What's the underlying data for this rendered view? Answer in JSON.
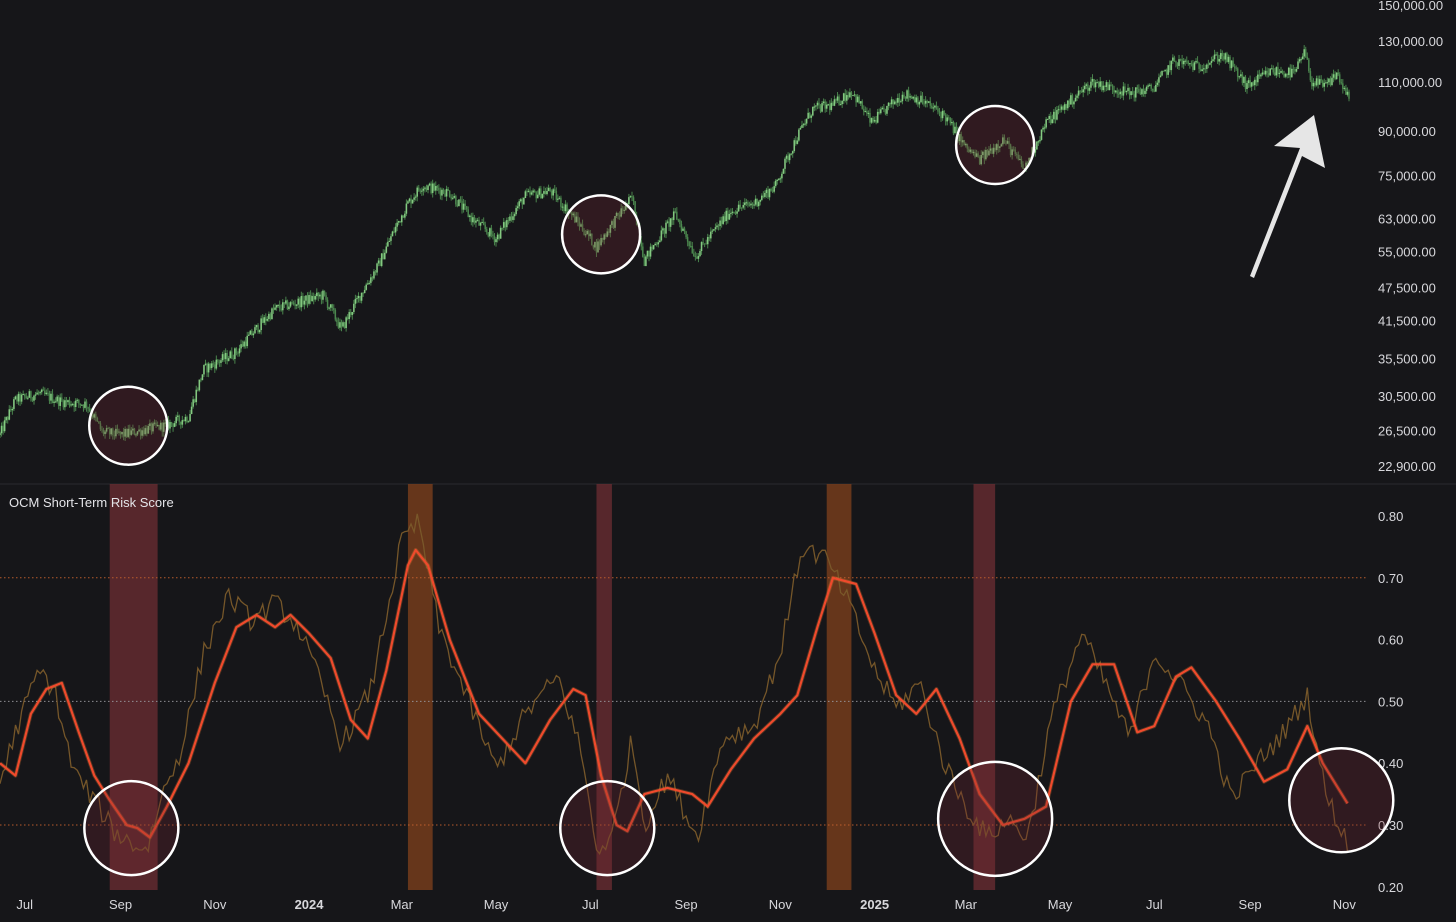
{
  "colors": {
    "background": "#161619",
    "candle": "#4f8f52",
    "candle_light": "#8fd88c",
    "risk_fast": "#7a5a2a",
    "risk_slow": "#ef4a2c",
    "risk_slow_glow": "#ff8a3c",
    "band_red": "#6e2e33",
    "band_orange": "#7a3f1c",
    "line_orange_dotted": "#c8622e",
    "line_white_dotted": "#9a9aa0",
    "axis_text": "#d8d8dc",
    "circle": "#ffffff",
    "arrow": "#e6e6e6"
  },
  "chart_data": [
    {
      "type": "candlestick",
      "name": "price",
      "scale": "log",
      "y_ticks": [
        22900,
        26500,
        30500,
        35500,
        41500,
        47500,
        55000,
        63000,
        75000,
        90000,
        110000,
        130000,
        150000
      ],
      "y_tick_labels": [
        "22,900.00",
        "26,500.00",
        "30,500.00",
        "35,500.00",
        "41,500.00",
        "47,500.00",
        "55,000.00",
        "63,000.00",
        "75,000.00",
        "90,000.00",
        "110,000.00",
        "130,000.00",
        "150,000.00"
      ],
      "ylim": [
        21500,
        150000
      ],
      "x_start": "2023-06-15",
      "x_end": "2025-11-15",
      "price_path": [
        [
          "2023-06-15",
          26000
        ],
        [
          "2023-06-25",
          30000
        ],
        [
          "2023-07-10",
          30800
        ],
        [
          "2023-07-25",
          29800
        ],
        [
          "2023-08-10",
          29500
        ],
        [
          "2023-08-20",
          26300
        ],
        [
          "2023-09-01",
          26000
        ],
        [
          "2023-09-15",
          26500
        ],
        [
          "2023-09-30",
          27000
        ],
        [
          "2023-10-15",
          28000
        ],
        [
          "2023-10-25",
          34000
        ],
        [
          "2023-11-15",
          36500
        ],
        [
          "2023-12-10",
          43500
        ],
        [
          "2024-01-10",
          46000
        ],
        [
          "2024-01-22",
          40000
        ],
        [
          "2024-02-15",
          52000
        ],
        [
          "2024-03-05",
          67000
        ],
        [
          "2024-03-14",
          72000
        ],
        [
          "2024-04-01",
          70000
        ],
        [
          "2024-04-15",
          63000
        ],
        [
          "2024-05-01",
          58000
        ],
        [
          "2024-05-20",
          69000
        ],
        [
          "2024-06-05",
          70500
        ],
        [
          "2024-06-25",
          61000
        ],
        [
          "2024-07-05",
          56000
        ],
        [
          "2024-07-28",
          68500
        ],
        [
          "2024-08-05",
          53000
        ],
        [
          "2024-08-25",
          64000
        ],
        [
          "2024-09-07",
          54000
        ],
        [
          "2024-09-30",
          65000
        ],
        [
          "2024-10-15",
          67000
        ],
        [
          "2024-10-29",
          72000
        ],
        [
          "2024-11-12",
          88000
        ],
        [
          "2024-11-22",
          98500
        ],
        [
          "2024-12-05",
          100000
        ],
        [
          "2024-12-17",
          106000
        ],
        [
          "2024-12-30",
          93000
        ],
        [
          "2025-01-20",
          105000
        ],
        [
          "2025-01-31",
          102000
        ],
        [
          "2025-02-15",
          96000
        ],
        [
          "2025-03-01",
          84000
        ],
        [
          "2025-03-10",
          80000
        ],
        [
          "2025-03-25",
          87000
        ],
        [
          "2025-04-08",
          77000
        ],
        [
          "2025-04-22",
          93000
        ],
        [
          "2025-05-10",
          103000
        ],
        [
          "2025-05-22",
          110000
        ],
        [
          "2025-06-15",
          105000
        ],
        [
          "2025-06-30",
          107000
        ],
        [
          "2025-07-14",
          120000
        ],
        [
          "2025-07-30",
          117000
        ],
        [
          "2025-08-14",
          123000
        ],
        [
          "2025-08-30",
          108000
        ],
        [
          "2025-09-15",
          115000
        ],
        [
          "2025-09-30",
          114000
        ],
        [
          "2025-10-06",
          124000
        ],
        [
          "2025-10-11",
          110000
        ],
        [
          "2025-10-20",
          108000
        ],
        [
          "2025-10-27",
          114000
        ],
        [
          "2025-11-04",
          102000
        ]
      ]
    },
    {
      "type": "line",
      "title": "OCM Short-Term Risk Score",
      "y_ticks": [
        0.2,
        0.3,
        0.4,
        0.5,
        0.6,
        0.7,
        0.8
      ],
      "y_tick_labels": [
        "0.20",
        "0.30",
        "0.40",
        "0.50",
        "0.60",
        "0.70",
        "0.80"
      ],
      "ylim": [
        0.2,
        0.84
      ],
      "reference_lines": [
        {
          "value": 0.7,
          "style": "orange-dotted"
        },
        {
          "value": 0.5,
          "style": "white-dotted"
        },
        {
          "value": 0.3,
          "style": "orange-dotted"
        }
      ],
      "series": [
        {
          "style": "slow",
          "points": [
            [
              "2023-06-15",
              0.4
            ],
            [
              "2023-06-25",
              0.38
            ],
            [
              "2023-07-05",
              0.48
            ],
            [
              "2023-07-15",
              0.52
            ],
            [
              "2023-07-25",
              0.53
            ],
            [
              "2023-08-05",
              0.45
            ],
            [
              "2023-08-15",
              0.38
            ],
            [
              "2023-08-25",
              0.34
            ],
            [
              "2023-09-05",
              0.3
            ],
            [
              "2023-09-12",
              0.295
            ],
            [
              "2023-09-20",
              0.28
            ],
            [
              "2023-10-01",
              0.33
            ],
            [
              "2023-10-15",
              0.4
            ],
            [
              "2023-11-01",
              0.53
            ],
            [
              "2023-11-15",
              0.62
            ],
            [
              "2023-11-28",
              0.64
            ],
            [
              "2023-12-10",
              0.62
            ],
            [
              "2023-12-20",
              0.64
            ],
            [
              "2024-01-01",
              0.61
            ],
            [
              "2024-01-15",
              0.57
            ],
            [
              "2024-01-28",
              0.47
            ],
            [
              "2024-02-08",
              0.44
            ],
            [
              "2024-02-20",
              0.55
            ],
            [
              "2024-03-05",
              0.72
            ],
            [
              "2024-03-10",
              0.745
            ],
            [
              "2024-03-18",
              0.72
            ],
            [
              "2024-04-01",
              0.6
            ],
            [
              "2024-04-20",
              0.48
            ],
            [
              "2024-05-05",
              0.44
            ],
            [
              "2024-05-20",
              0.4
            ],
            [
              "2024-06-05",
              0.47
            ],
            [
              "2024-06-20",
              0.52
            ],
            [
              "2024-06-28",
              0.51
            ],
            [
              "2024-07-08",
              0.38
            ],
            [
              "2024-07-18",
              0.3
            ],
            [
              "2024-07-25",
              0.29
            ],
            [
              "2024-08-05",
              0.35
            ],
            [
              "2024-08-20",
              0.36
            ],
            [
              "2024-09-05",
              0.35
            ],
            [
              "2024-09-15",
              0.33
            ],
            [
              "2024-09-30",
              0.39
            ],
            [
              "2024-10-15",
              0.44
            ],
            [
              "2024-11-01",
              0.48
            ],
            [
              "2024-11-12",
              0.51
            ],
            [
              "2024-11-25",
              0.62
            ],
            [
              "2024-12-05",
              0.7
            ],
            [
              "2024-12-20",
              0.69
            ],
            [
              "2025-01-01",
              0.61
            ],
            [
              "2025-01-15",
              0.51
            ],
            [
              "2025-01-28",
              0.48
            ],
            [
              "2025-02-10",
              0.52
            ],
            [
              "2025-02-25",
              0.44
            ],
            [
              "2025-03-10",
              0.35
            ],
            [
              "2025-03-25",
              0.3
            ],
            [
              "2025-04-08",
              0.31
            ],
            [
              "2025-04-22",
              0.33
            ],
            [
              "2025-05-08",
              0.5
            ],
            [
              "2025-05-22",
              0.56
            ],
            [
              "2025-06-05",
              0.56
            ],
            [
              "2025-06-20",
              0.45
            ],
            [
              "2025-07-01",
              0.46
            ],
            [
              "2025-07-15",
              0.54
            ],
            [
              "2025-07-25",
              0.555
            ],
            [
              "2025-08-10",
              0.5
            ],
            [
              "2025-08-25",
              0.44
            ],
            [
              "2025-09-10",
              0.37
            ],
            [
              "2025-09-25",
              0.39
            ],
            [
              "2025-10-08",
              0.46
            ],
            [
              "2025-10-18",
              0.4
            ],
            [
              "2025-11-03",
              0.335
            ]
          ]
        },
        {
          "style": "fast",
          "points": [
            [
              "2023-06-15",
              0.37
            ],
            [
              "2023-06-25",
              0.45
            ],
            [
              "2023-07-10",
              0.55
            ],
            [
              "2023-07-20",
              0.52
            ],
            [
              "2023-08-01",
              0.39
            ],
            [
              "2023-08-15",
              0.34
            ],
            [
              "2023-08-28",
              0.29
            ],
            [
              "2023-09-08",
              0.27
            ],
            [
              "2023-09-18",
              0.26
            ],
            [
              "2023-09-28",
              0.35
            ],
            [
              "2023-10-10",
              0.42
            ],
            [
              "2023-10-25",
              0.58
            ],
            [
              "2023-11-10",
              0.67
            ],
            [
              "2023-11-25",
              0.63
            ],
            [
              "2023-12-10",
              0.66
            ],
            [
              "2023-12-25",
              0.62
            ],
            [
              "2024-01-10",
              0.52
            ],
            [
              "2024-01-22",
              0.43
            ],
            [
              "2024-02-10",
              0.52
            ],
            [
              "2024-03-01",
              0.76
            ],
            [
              "2024-03-12",
              0.79
            ],
            [
              "2024-03-25",
              0.62
            ],
            [
              "2024-04-10",
              0.52
            ],
            [
              "2024-05-01",
              0.39
            ],
            [
              "2024-05-20",
              0.48
            ],
            [
              "2024-06-10",
              0.54
            ],
            [
              "2024-06-25",
              0.42
            ],
            [
              "2024-07-05",
              0.26
            ],
            [
              "2024-07-15",
              0.28
            ],
            [
              "2024-07-28",
              0.44
            ],
            [
              "2024-08-05",
              0.3
            ],
            [
              "2024-08-20",
              0.38
            ],
            [
              "2024-09-08",
              0.28
            ],
            [
              "2024-09-25",
              0.44
            ],
            [
              "2024-10-15",
              0.46
            ],
            [
              "2024-11-01",
              0.58
            ],
            [
              "2024-11-15",
              0.75
            ],
            [
              "2024-12-01",
              0.73
            ],
            [
              "2024-12-15",
              0.66
            ],
            [
              "2025-01-01",
              0.55
            ],
            [
              "2025-01-15",
              0.49
            ],
            [
              "2025-01-30",
              0.53
            ],
            [
              "2025-02-15",
              0.4
            ],
            [
              "2025-03-01",
              0.33
            ],
            [
              "2025-03-15",
              0.28
            ],
            [
              "2025-03-28",
              0.31
            ],
            [
              "2025-04-10",
              0.28
            ],
            [
              "2025-04-25",
              0.47
            ],
            [
              "2025-05-15",
              0.61
            ],
            [
              "2025-06-01",
              0.52
            ],
            [
              "2025-06-15",
              0.44
            ],
            [
              "2025-07-01",
              0.58
            ],
            [
              "2025-07-20",
              0.52
            ],
            [
              "2025-08-05",
              0.46
            ],
            [
              "2025-08-20",
              0.34
            ],
            [
              "2025-09-05",
              0.4
            ],
            [
              "2025-09-20",
              0.44
            ],
            [
              "2025-10-08",
              0.51
            ],
            [
              "2025-10-20",
              0.35
            ],
            [
              "2025-11-03",
              0.27
            ]
          ]
        }
      ],
      "bands": [
        {
          "start": "2023-08-25",
          "end": "2023-09-25",
          "color": "red"
        },
        {
          "start": "2024-03-05",
          "end": "2024-03-21",
          "color": "orange"
        },
        {
          "start": "2024-07-05",
          "end": "2024-07-15",
          "color": "red"
        },
        {
          "start": "2024-12-01",
          "end": "2024-12-17",
          "color": "orange"
        },
        {
          "start": "2025-03-06",
          "end": "2025-03-20",
          "color": "red"
        }
      ]
    }
  ],
  "x_axis_ticks": [
    {
      "date": "2023-07-01",
      "label": "Jul",
      "bold": false
    },
    {
      "date": "2023-09-01",
      "label": "Sep",
      "bold": false
    },
    {
      "date": "2023-11-01",
      "label": "Nov",
      "bold": false
    },
    {
      "date": "2024-01-01",
      "label": "2024",
      "bold": true
    },
    {
      "date": "2024-03-01",
      "label": "Mar",
      "bold": false
    },
    {
      "date": "2024-05-01",
      "label": "May",
      "bold": false
    },
    {
      "date": "2024-07-01",
      "label": "Jul",
      "bold": false
    },
    {
      "date": "2024-09-01",
      "label": "Sep",
      "bold": false
    },
    {
      "date": "2024-11-01",
      "label": "Nov",
      "bold": false
    },
    {
      "date": "2025-01-01",
      "label": "2025",
      "bold": true
    },
    {
      "date": "2025-03-01",
      "label": "Mar",
      "bold": false
    },
    {
      "date": "2025-05-01",
      "label": "May",
      "bold": false
    },
    {
      "date": "2025-07-01",
      "label": "Jul",
      "bold": false
    },
    {
      "date": "2025-09-01",
      "label": "Sep",
      "bold": false
    },
    {
      "date": "2025-11-01",
      "label": "Nov",
      "bold": false
    }
  ],
  "price_circles": [
    {
      "date": "2023-09-06",
      "price": 27000
    },
    {
      "date": "2024-07-08",
      "price": 59000
    },
    {
      "date": "2025-03-20",
      "price": 85000
    }
  ],
  "risk_circles": [
    {
      "date": "2023-09-08",
      "value": 0.295
    },
    {
      "date": "2024-07-12",
      "value": 0.295
    },
    {
      "date": "2025-03-20",
      "value": 0.31
    },
    {
      "date": "2025-10-30",
      "value": 0.34
    }
  ],
  "arrow_icon": "white-up-arrow-icon"
}
